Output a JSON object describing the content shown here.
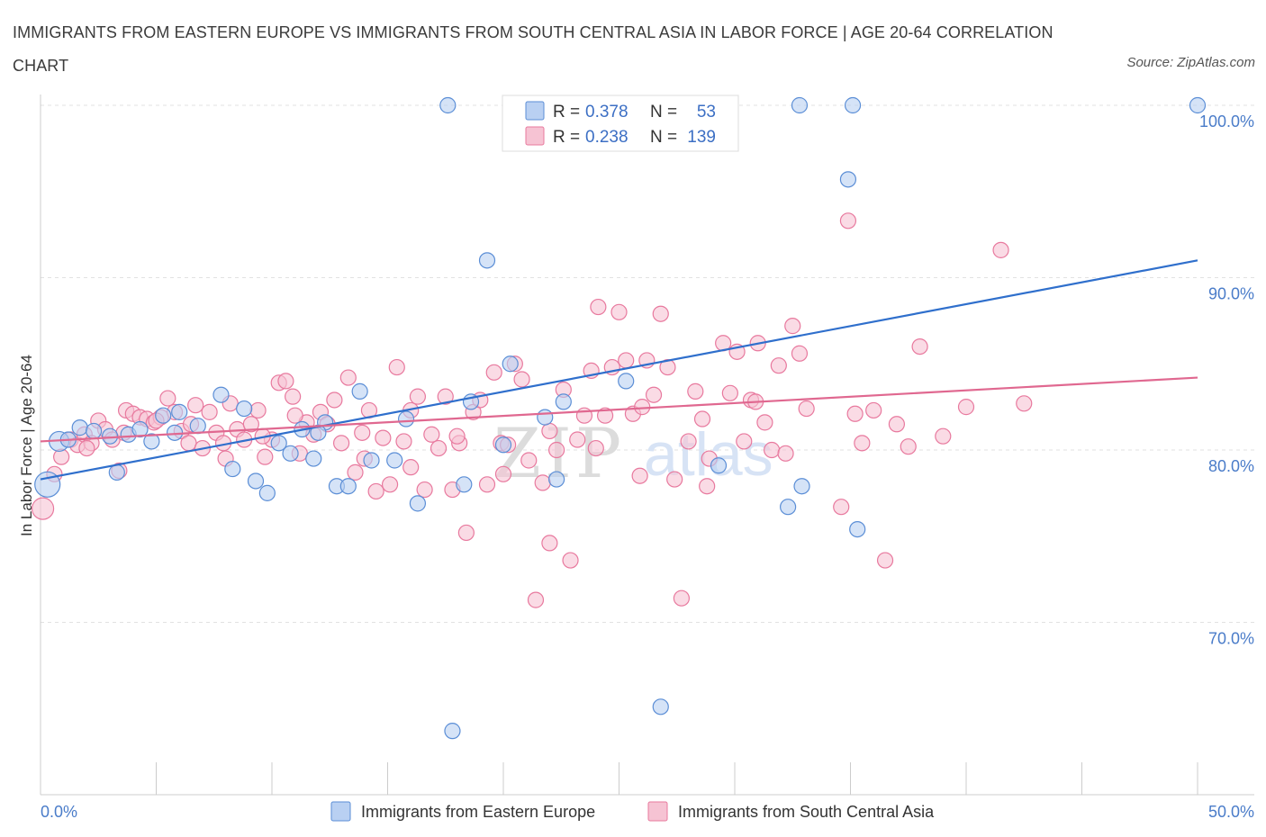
{
  "title": "IMMIGRANTS FROM EASTERN EUROPE VS IMMIGRANTS FROM SOUTH CENTRAL ASIA IN LABOR FORCE | AGE 20-64 CORRELATION CHART",
  "source": "Source: ZipAtlas.com",
  "watermark": {
    "zip": "ZIP",
    "atlas": "atlas"
  },
  "colors": {
    "blue": "#5b8ed6",
    "blue_fill": "#b9d0f2",
    "blue_line": "#2f6fcc",
    "pink": "#e8799e",
    "pink_fill": "#f6c3d3",
    "pink_line": "#e06890",
    "tick_text": "#4a7cc9"
  },
  "chart_data": {
    "type": "scatter",
    "xlabel": "",
    "ylabel": "In Labor Force | Age 20-64",
    "xlim": [
      0,
      50
    ],
    "ylim": [
      60,
      100
    ],
    "x_tick_labels": [
      "0.0%",
      "50.0%"
    ],
    "y_ticks": [
      70,
      80,
      90,
      100
    ],
    "y_tick_labels": [
      "70.0%",
      "80.0%",
      "90.0%",
      "100.0%"
    ],
    "grid": true,
    "legend_position": "top-center",
    "stats": [
      {
        "r_label": "R = ",
        "r": "0.378",
        "n_label": "N = ",
        "n": "53"
      },
      {
        "r_label": "R = ",
        "r": "0.238",
        "n_label": "N = ",
        "n": "139"
      }
    ],
    "series": [
      {
        "name": "Immigrants from Eastern Europe",
        "color": "#5b8ed6",
        "trend": {
          "x": [
            0,
            50
          ],
          "y": [
            78.3,
            91.0
          ]
        },
        "points": [
          [
            0.3,
            78.0
          ],
          [
            0.8,
            80.5
          ],
          [
            1.2,
            80.6
          ],
          [
            1.7,
            81.3
          ],
          [
            2.3,
            81.1
          ],
          [
            3.3,
            78.7
          ],
          [
            3.8,
            80.9
          ],
          [
            4.3,
            81.2
          ],
          [
            4.8,
            80.5
          ],
          [
            5.3,
            82.0
          ],
          [
            5.8,
            81.0
          ],
          [
            6.8,
            81.4
          ],
          [
            7.8,
            83.2
          ],
          [
            8.3,
            78.9
          ],
          [
            8.8,
            82.4
          ],
          [
            9.3,
            78.2
          ],
          [
            9.8,
            77.5
          ],
          [
            10.3,
            80.4
          ],
          [
            10.8,
            79.8
          ],
          [
            11.3,
            81.2
          ],
          [
            11.8,
            79.5
          ],
          [
            12.3,
            81.6
          ],
          [
            12.8,
            77.9
          ],
          [
            13.3,
            77.9
          ],
          [
            13.8,
            83.4
          ],
          [
            14.3,
            79.4
          ],
          [
            15.3,
            79.4
          ],
          [
            15.8,
            81.8
          ],
          [
            16.3,
            76.9
          ],
          [
            17.6,
            100.0
          ],
          [
            18.3,
            78.0
          ],
          [
            18.6,
            82.8
          ],
          [
            19.3,
            91.0
          ],
          [
            20.3,
            85.0
          ],
          [
            21.8,
            81.9
          ],
          [
            22.3,
            78.3
          ],
          [
            22.6,
            82.8
          ],
          [
            25.3,
            84.0
          ],
          [
            25.8,
            100.0
          ],
          [
            26.8,
            65.1
          ],
          [
            29.3,
            79.1
          ],
          [
            32.3,
            76.7
          ],
          [
            32.8,
            100.0
          ],
          [
            32.9,
            77.9
          ],
          [
            34.9,
            95.7
          ],
          [
            35.1,
            100.0
          ],
          [
            35.3,
            75.4
          ],
          [
            50.0,
            100.0
          ],
          [
            17.8,
            63.7
          ],
          [
            3.0,
            80.8
          ],
          [
            6.0,
            82.2
          ],
          [
            12.0,
            81.0
          ],
          [
            20.0,
            80.3
          ]
        ],
        "sizes": {
          "0": 14,
          "1": 11
        }
      },
      {
        "name": "Immigrants from South Central Asia",
        "color": "#e8799e",
        "trend": {
          "x": [
            0,
            50
          ],
          "y": [
            80.5,
            84.2
          ]
        },
        "points": [
          [
            0.1,
            76.6
          ],
          [
            0.6,
            78.6
          ],
          [
            0.9,
            79.6
          ],
          [
            1.3,
            80.6
          ],
          [
            1.6,
            80.3
          ],
          [
            1.9,
            80.9
          ],
          [
            2.2,
            80.4
          ],
          [
            2.5,
            81.7
          ],
          [
            2.8,
            81.2
          ],
          [
            3.1,
            80.6
          ],
          [
            3.4,
            78.8
          ],
          [
            3.7,
            82.3
          ],
          [
            4.0,
            82.1
          ],
          [
            4.3,
            81.9
          ],
          [
            4.6,
            81.8
          ],
          [
            4.9,
            81.6
          ],
          [
            5.2,
            81.9
          ],
          [
            5.5,
            83.0
          ],
          [
            5.8,
            82.2
          ],
          [
            6.1,
            81.1
          ],
          [
            6.4,
            80.4
          ],
          [
            6.7,
            82.6
          ],
          [
            7.0,
            80.1
          ],
          [
            7.3,
            82.2
          ],
          [
            7.6,
            81.0
          ],
          [
            7.9,
            80.4
          ],
          [
            8.2,
            82.7
          ],
          [
            8.5,
            81.2
          ],
          [
            8.8,
            80.6
          ],
          [
            9.1,
            81.5
          ],
          [
            9.4,
            82.3
          ],
          [
            9.7,
            79.6
          ],
          [
            10.0,
            80.6
          ],
          [
            10.3,
            83.9
          ],
          [
            10.6,
            84.0
          ],
          [
            10.9,
            83.1
          ],
          [
            11.2,
            79.8
          ],
          [
            11.5,
            81.6
          ],
          [
            11.8,
            80.9
          ],
          [
            12.1,
            82.2
          ],
          [
            12.4,
            81.5
          ],
          [
            12.7,
            82.9
          ],
          [
            13.0,
            80.4
          ],
          [
            13.3,
            84.2
          ],
          [
            13.6,
            78.7
          ],
          [
            13.9,
            81.0
          ],
          [
            14.2,
            82.3
          ],
          [
            14.5,
            77.6
          ],
          [
            14.8,
            80.7
          ],
          [
            15.1,
            78.0
          ],
          [
            15.4,
            84.8
          ],
          [
            15.7,
            80.5
          ],
          [
            16.0,
            82.3
          ],
          [
            16.3,
            83.1
          ],
          [
            16.6,
            77.7
          ],
          [
            16.9,
            80.9
          ],
          [
            17.2,
            80.1
          ],
          [
            17.5,
            83.1
          ],
          [
            17.8,
            77.7
          ],
          [
            18.1,
            80.4
          ],
          [
            18.4,
            75.2
          ],
          [
            18.7,
            82.2
          ],
          [
            19.0,
            82.9
          ],
          [
            19.3,
            78.0
          ],
          [
            19.6,
            84.5
          ],
          [
            19.9,
            80.4
          ],
          [
            20.2,
            80.3
          ],
          [
            20.5,
            85.0
          ],
          [
            20.8,
            84.1
          ],
          [
            21.1,
            79.4
          ],
          [
            21.4,
            71.3
          ],
          [
            21.7,
            78.1
          ],
          [
            22.0,
            74.6
          ],
          [
            22.3,
            80.0
          ],
          [
            22.6,
            83.5
          ],
          [
            22.9,
            73.6
          ],
          [
            23.2,
            80.6
          ],
          [
            23.5,
            82.0
          ],
          [
            23.8,
            84.6
          ],
          [
            24.1,
            88.3
          ],
          [
            24.4,
            82.0
          ],
          [
            24.7,
            84.8
          ],
          [
            25.0,
            88.0
          ],
          [
            25.3,
            85.2
          ],
          [
            25.6,
            82.1
          ],
          [
            25.9,
            78.5
          ],
          [
            26.2,
            85.2
          ],
          [
            26.5,
            83.2
          ],
          [
            26.8,
            87.9
          ],
          [
            27.1,
            84.8
          ],
          [
            27.4,
            78.3
          ],
          [
            27.7,
            71.4
          ],
          [
            28.0,
            80.5
          ],
          [
            28.3,
            83.4
          ],
          [
            28.6,
            81.8
          ],
          [
            28.9,
            79.5
          ],
          [
            29.2,
            100.0
          ],
          [
            29.5,
            86.2
          ],
          [
            29.8,
            83.3
          ],
          [
            30.1,
            85.7
          ],
          [
            30.4,
            80.5
          ],
          [
            30.7,
            82.9
          ],
          [
            31.0,
            86.2
          ],
          [
            31.3,
            81.6
          ],
          [
            31.6,
            80.0
          ],
          [
            31.9,
            84.9
          ],
          [
            32.2,
            79.8
          ],
          [
            32.5,
            87.2
          ],
          [
            32.8,
            85.6
          ],
          [
            33.1,
            82.4
          ],
          [
            34.6,
            76.7
          ],
          [
            34.9,
            93.3
          ],
          [
            35.2,
            82.1
          ],
          [
            35.5,
            80.4
          ],
          [
            36.0,
            82.3
          ],
          [
            36.5,
            73.6
          ],
          [
            37.0,
            81.5
          ],
          [
            37.5,
            80.2
          ],
          [
            38.0,
            86.0
          ],
          [
            39.0,
            80.8
          ],
          [
            40.0,
            82.5
          ],
          [
            41.5,
            91.6
          ],
          [
            42.5,
            82.7
          ],
          [
            2.0,
            80.1
          ],
          [
            3.6,
            81.0
          ],
          [
            5.0,
            81.7
          ],
          [
            8.0,
            79.5
          ],
          [
            11.0,
            82.0
          ],
          [
            14.0,
            79.5
          ],
          [
            16.0,
            79.0
          ],
          [
            18.0,
            80.8
          ],
          [
            20.0,
            78.6
          ],
          [
            22.0,
            81.1
          ],
          [
            24.0,
            80.1
          ],
          [
            26.0,
            82.5
          ],
          [
            28.8,
            77.9
          ],
          [
            30.9,
            82.8
          ],
          [
            6.5,
            81.5
          ],
          [
            9.6,
            80.8
          ]
        ],
        "sizes": {
          "0": 12
        }
      }
    ]
  }
}
